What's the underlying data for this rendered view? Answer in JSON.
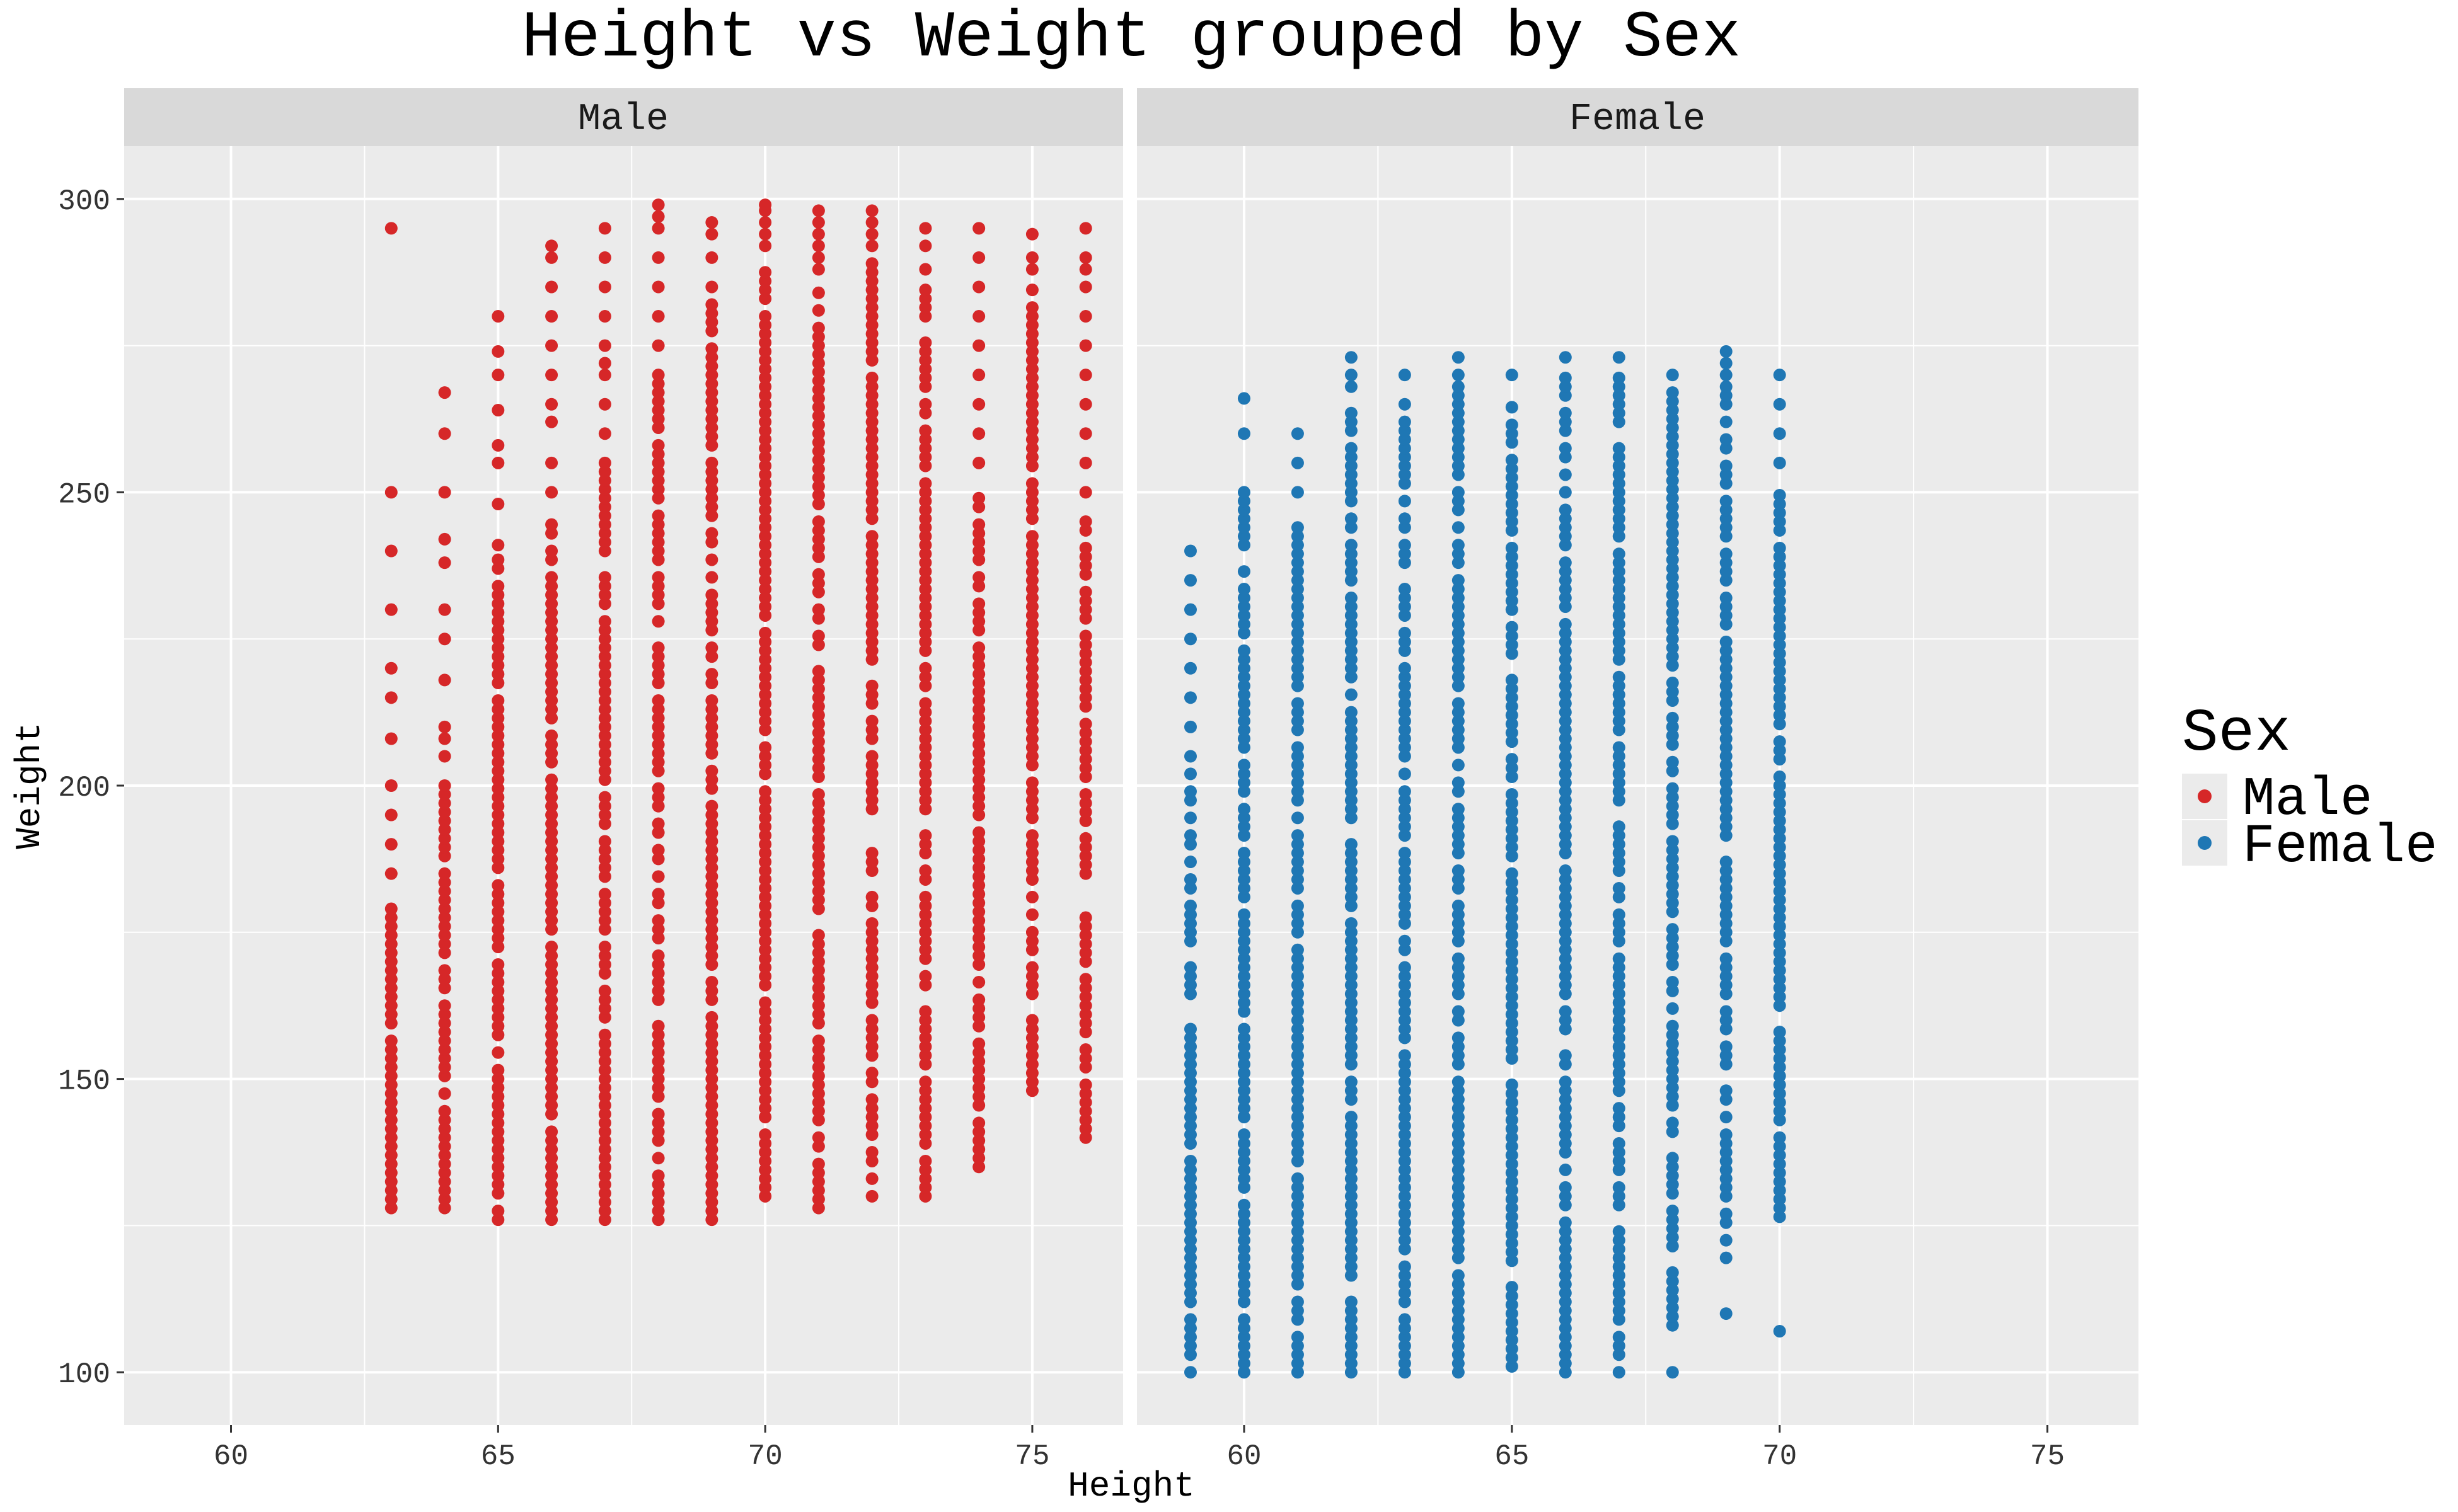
{
  "chart_data": {
    "type": "scatter",
    "title": "Height vs Weight grouped by Sex",
    "xlabel": "Height",
    "ylabel": "Weight",
    "facets": [
      "Male",
      "Female"
    ],
    "xlim": [
      58,
      76.7
    ],
    "ylim": [
      91,
      309
    ],
    "x_ticks": [
      60,
      65,
      70,
      75
    ],
    "y_ticks": [
      100,
      150,
      200,
      250,
      300
    ],
    "grid": true,
    "legend": {
      "title": "Sex",
      "position": "right",
      "entries": [
        "Male",
        "Female"
      ]
    },
    "series": [
      {
        "name": "Male",
        "color": "#d62728",
        "columns": [
          {
            "x": 63,
            "min": 128,
            "max": 180,
            "extra": [
              185,
              190,
              195,
              200,
              208,
              215,
              220,
              230,
              240,
              250,
              295
            ]
          },
          {
            "x": 64,
            "min": 128,
            "max": 200,
            "extra": [
              205,
              208,
              210,
              218,
              225,
              230,
              238,
              242,
              250,
              260,
              267
            ]
          },
          {
            "x": 65,
            "min": 126,
            "max": 240,
            "extra": [
              241,
              248,
              255,
              258,
              264,
              270,
              274,
              280
            ]
          },
          {
            "x": 66,
            "min": 126,
            "max": 245,
            "extra": [
              250,
              255,
              262,
              265,
              270,
              275,
              280,
              285,
              290,
              292
            ]
          },
          {
            "x": 67,
            "min": 126,
            "max": 255,
            "extra": [
              260,
              265,
              270,
              272,
              275,
              280,
              285,
              290,
              295
            ]
          },
          {
            "x": 68,
            "min": 126,
            "max": 270,
            "extra": [
              275,
              280,
              285,
              290,
              295,
              297,
              299
            ]
          },
          {
            "x": 69,
            "min": 126,
            "max": 282,
            "extra": [
              285,
              290,
              294,
              296
            ]
          },
          {
            "x": 70,
            "min": 130,
            "max": 290,
            "extra": [
              292,
              294,
              296,
              298,
              299
            ]
          },
          {
            "x": 71,
            "min": 128,
            "max": 286,
            "extra": [
              288,
              290,
              292,
              294,
              296,
              298
            ]
          },
          {
            "x": 72,
            "min": 130,
            "max": 290,
            "extra": [
              292,
              294,
              296,
              298
            ]
          },
          {
            "x": 73,
            "min": 130,
            "max": 285,
            "extra": [
              288,
              292,
              295
            ]
          },
          {
            "x": 74,
            "min": 135,
            "max": 250,
            "extra": [
              255,
              260,
              265,
              270,
              275,
              280,
              285,
              290,
              295
            ]
          },
          {
            "x": 75,
            "min": 148,
            "max": 285,
            "extra": [
              288,
              290,
              294
            ]
          },
          {
            "x": 76,
            "min": 140,
            "max": 245,
            "extra": [
              250,
              255,
              260,
              265,
              270,
              275,
              280,
              285,
              288,
              290,
              295
            ]
          }
        ]
      },
      {
        "name": "Female",
        "color": "#1f77b4",
        "columns": [
          {
            "x": 59,
            "min": 100,
            "max": 202,
            "extra": [
              205,
              210,
              215,
              220,
              225,
              230,
              235,
              240
            ]
          },
          {
            "x": 60,
            "min": 100,
            "max": 250,
            "extra": [
              260,
              266
            ]
          },
          {
            "x": 61,
            "min": 100,
            "max": 245,
            "extra": [
              250,
              255,
              260
            ]
          },
          {
            "x": 62,
            "min": 100,
            "max": 265,
            "extra": [
              268,
              270,
              273
            ]
          },
          {
            "x": 63,
            "min": 100,
            "max": 262,
            "extra": [
              265,
              270
            ]
          },
          {
            "x": 64,
            "min": 100,
            "max": 268,
            "extra": [
              270,
              273
            ]
          },
          {
            "x": 65,
            "min": 101,
            "max": 265,
            "extra": [
              270
            ]
          },
          {
            "x": 66,
            "min": 100,
            "max": 270,
            "extra": [
              273
            ]
          },
          {
            "x": 67,
            "min": 100,
            "max": 270,
            "extra": [
              273
            ]
          },
          {
            "x": 68,
            "min": 108,
            "max": 268,
            "extra": [
              100,
              270
            ]
          },
          {
            "x": 69,
            "min": 118,
            "max": 268,
            "extra": [
              110,
              270,
              272,
              274
            ]
          },
          {
            "x": 70,
            "min": 125,
            "max": 250,
            "extra": [
              107,
              255,
              260,
              265,
              270
            ]
          }
        ]
      }
    ]
  }
}
